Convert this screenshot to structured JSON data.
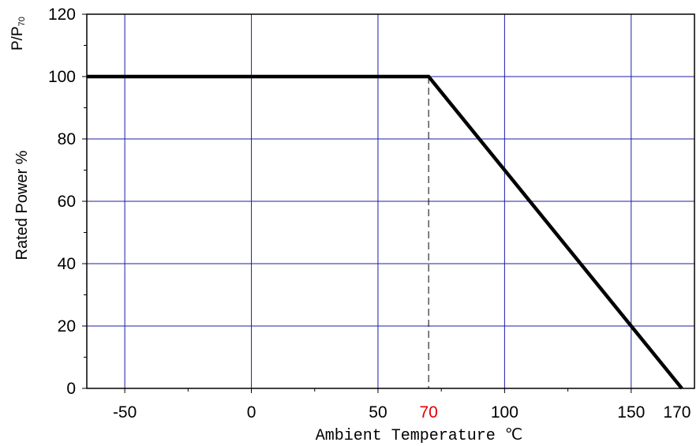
{
  "chart_data": {
    "type": "line",
    "title": "",
    "xlabel": "Ambient Temperature ℃",
    "ylabel": "Rated Power %",
    "ylabel_top": "P/P",
    "ylabel_top_sub": "70",
    "xlim": [
      -65,
      175
    ],
    "ylim": [
      0,
      120
    ],
    "x_ticks": [
      -50,
      0,
      50,
      100,
      150
    ],
    "x_extra_ticks": [
      70,
      170
    ],
    "y_ticks": [
      0,
      20,
      40,
      60,
      80,
      100,
      120
    ],
    "grid": true,
    "grid_color": "#1c1ca8",
    "line_color": "#000000",
    "highlight_color": "#e00000",
    "series": [
      {
        "x": [
          -65,
          70,
          170
        ],
        "y": [
          100,
          100,
          0
        ]
      }
    ],
    "annotations": [
      {
        "type": "vertical-dashed",
        "x": 70,
        "y_from": 0,
        "y_to": 100
      }
    ]
  }
}
